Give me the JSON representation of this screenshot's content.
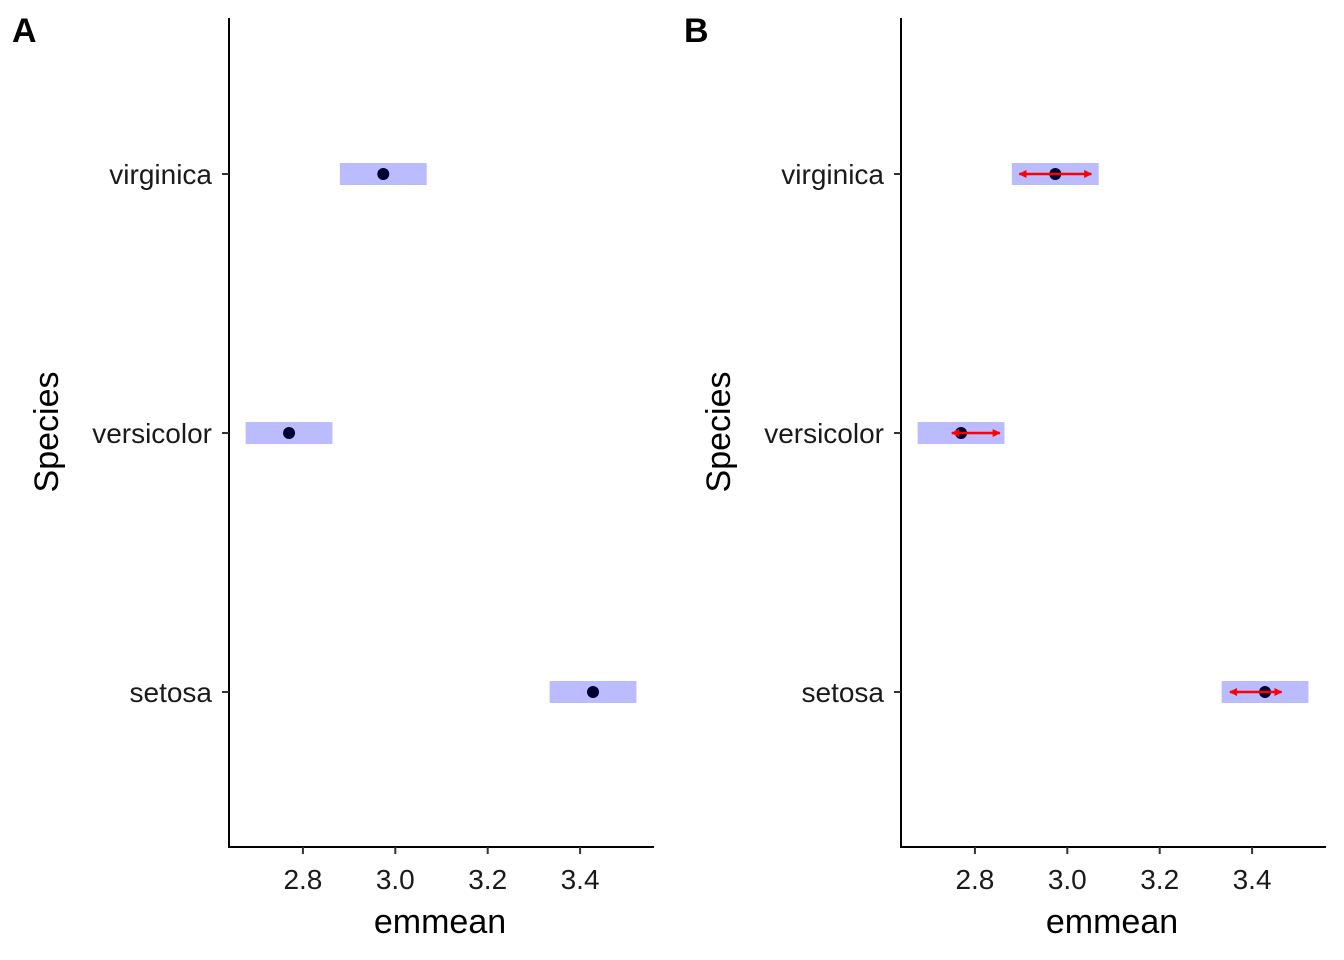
{
  "chart_data": [
    {
      "panel": "A",
      "type": "scatter",
      "xlabel": "emmean",
      "ylabel": "Species",
      "categories": [
        "setosa",
        "versicolor",
        "virginica"
      ],
      "x_ticks": [
        "2.8",
        "3.0",
        "3.2",
        "3.4"
      ],
      "xlim": [
        2.64,
        3.56
      ],
      "points": [
        {
          "category": "virginica",
          "emmean": 2.974,
          "lower": 2.88,
          "upper": 3.068
        },
        {
          "category": "versicolor",
          "emmean": 2.77,
          "lower": 2.676,
          "upper": 2.864
        },
        {
          "category": "setosa",
          "emmean": 3.428,
          "lower": 3.334,
          "upper": 3.522
        }
      ],
      "point_color": "#000033",
      "interval_color": "#BBBBFF",
      "arrows": false
    },
    {
      "panel": "B",
      "type": "scatter",
      "xlabel": "emmean",
      "ylabel": "Species",
      "categories": [
        "setosa",
        "versicolor",
        "virginica"
      ],
      "x_ticks": [
        "2.8",
        "3.0",
        "3.2",
        "3.4"
      ],
      "xlim": [
        2.64,
        3.56
      ],
      "points": [
        {
          "category": "virginica",
          "emmean": 2.974,
          "lower": 2.88,
          "upper": 3.068,
          "arrow_left": 2.896,
          "arrow_right": 3.052
        },
        {
          "category": "versicolor",
          "emmean": 2.77,
          "lower": 2.676,
          "upper": 2.864,
          "arrow_left": 2.75,
          "arrow_right": 2.854
        },
        {
          "category": "setosa",
          "emmean": 3.428,
          "lower": 3.334,
          "upper": 3.522,
          "arrow_left": 3.352,
          "arrow_right": 3.464
        }
      ],
      "point_color": "#000033",
      "interval_color": "#BBBBFF",
      "arrow_color": "#FF0000",
      "arrows": true
    }
  ]
}
